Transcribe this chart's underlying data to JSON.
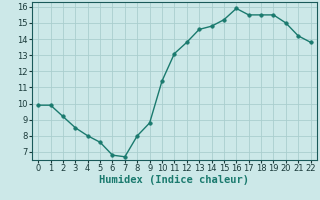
{
  "x": [
    0,
    1,
    2,
    3,
    4,
    5,
    6,
    7,
    8,
    9,
    10,
    11,
    12,
    13,
    14,
    15,
    16,
    17,
    18,
    19,
    20,
    21,
    22
  ],
  "y": [
    9.9,
    9.9,
    9.2,
    8.5,
    8.0,
    7.6,
    6.8,
    6.7,
    8.0,
    8.8,
    11.4,
    13.1,
    13.8,
    14.6,
    14.8,
    15.2,
    15.9,
    15.5,
    15.5,
    15.5,
    15.0,
    14.2,
    13.8
  ],
  "line_color": "#1a7a6e",
  "marker": "o",
  "marker_size": 2.5,
  "bg_color": "#cce8e8",
  "grid_color": "#aacece",
  "xlabel": "Humidex (Indice chaleur)",
  "xlim": [
    -0.5,
    22.5
  ],
  "ylim": [
    6.5,
    16.3
  ],
  "yticks": [
    7,
    8,
    9,
    10,
    11,
    12,
    13,
    14,
    15,
    16
  ],
  "xticks": [
    0,
    1,
    2,
    3,
    4,
    5,
    6,
    7,
    8,
    9,
    10,
    11,
    12,
    13,
    14,
    15,
    16,
    17,
    18,
    19,
    20,
    21,
    22
  ],
  "tick_label_size": 6.0,
  "xlabel_size": 7.5,
  "xlabel_weight": "bold"
}
